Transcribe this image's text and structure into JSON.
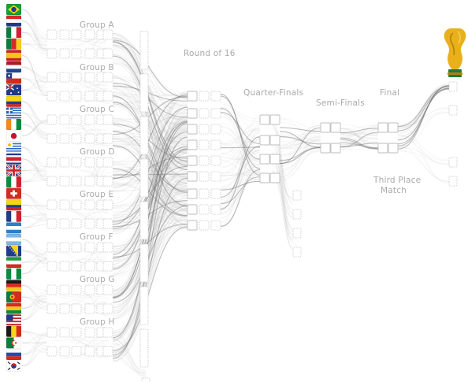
{
  "labels": {
    "group_a": "Group A",
    "group_b": "Group B",
    "group_c": "Group C",
    "group_d": "Group D",
    "group_e": "Group E",
    "group_f": "Group F",
    "group_g": "Group G",
    "group_h": "Group H",
    "round_of_16": "Round of 16",
    "quarter_finals": "Quarter-Finals",
    "semi_finals": "Semi-Finals",
    "final": "Final",
    "third_place_1": "Third Place",
    "third_place_2": "Match"
  },
  "flags": [
    {
      "name": "brazil-flag-icon",
      "colors": [
        "#1a9d3a",
        "#f7d417",
        "#1e3f8f"
      ],
      "pattern": "diamond"
    },
    {
      "name": "croatia-flag-icon",
      "colors": [
        "#d9262b",
        "#ffffff",
        "#1f3c8c"
      ],
      "pattern": "hstripes"
    },
    {
      "name": "mexico-flag-icon",
      "colors": [
        "#0f7b3e",
        "#ffffff",
        "#cf2330"
      ],
      "pattern": "vstripes"
    },
    {
      "name": "cameroon-flag-icon",
      "colors": [
        "#0f7b3e",
        "#d62b2b",
        "#f5d21a"
      ],
      "pattern": "vstripes"
    },
    {
      "name": "spain-flag-icon",
      "colors": [
        "#c8202b",
        "#f6c517",
        "#c8202b"
      ],
      "pattern": "hstripes-wide"
    },
    {
      "name": "netherlands-flag-icon",
      "colors": [
        "#ae1c28",
        "#ffffff",
        "#21468b"
      ],
      "pattern": "hstripes"
    },
    {
      "name": "chile-flag-icon",
      "colors": [
        "#ffffff",
        "#d52b1e",
        "#1f3b8f"
      ],
      "pattern": "chile"
    },
    {
      "name": "australia-flag-icon",
      "colors": [
        "#1f3a8f",
        "#ffffff",
        "#d0202f"
      ],
      "pattern": "blue-ensign"
    },
    {
      "name": "colombia-flag-icon",
      "colors": [
        "#f6d417",
        "#1f3c8c",
        "#cf2330"
      ],
      "pattern": "hstripes-wide"
    },
    {
      "name": "greece-flag-icon",
      "colors": [
        "#1f63b5",
        "#ffffff",
        "#1f63b5"
      ],
      "pattern": "greece"
    },
    {
      "name": "ivory-coast-flag-icon",
      "colors": [
        "#f28a1c",
        "#ffffff",
        "#0f8a3e"
      ],
      "pattern": "vstripes"
    },
    {
      "name": "japan-flag-icon",
      "colors": [
        "#ffffff",
        "#c8102e",
        "#ffffff"
      ],
      "pattern": "disc"
    },
    {
      "name": "uruguay-flag-icon",
      "colors": [
        "#ffffff",
        "#2f66c4",
        "#f4c20d"
      ],
      "pattern": "uruguay"
    },
    {
      "name": "costa-rica-flag-icon",
      "colors": [
        "#1f3c8c",
        "#ffffff",
        "#cf2330"
      ],
      "pattern": "costa"
    },
    {
      "name": "england-flag-icon",
      "colors": [
        "#1f3c8c",
        "#ffffff",
        "#cf2330"
      ],
      "pattern": "union"
    },
    {
      "name": "italy-flag-icon",
      "colors": [
        "#0f8a3e",
        "#ffffff",
        "#cf2330"
      ],
      "pattern": "vstripes"
    },
    {
      "name": "switzerland-flag-icon",
      "colors": [
        "#d52b1e",
        "#ffffff",
        "#d52b1e"
      ],
      "pattern": "cross"
    },
    {
      "name": "ecuador-flag-icon",
      "colors": [
        "#f6d417",
        "#1f3c8c",
        "#cf2330"
      ],
      "pattern": "hstripes-wide"
    },
    {
      "name": "france-flag-icon",
      "colors": [
        "#1f3c8c",
        "#ffffff",
        "#cf2330"
      ],
      "pattern": "vstripes"
    },
    {
      "name": "honduras-flag-icon",
      "colors": [
        "#2f7ec4",
        "#ffffff",
        "#2f7ec4"
      ],
      "pattern": "hstripes"
    },
    {
      "name": "argentina-flag-icon",
      "colors": [
        "#7fb6e6",
        "#ffffff",
        "#7fb6e6"
      ],
      "pattern": "hstripes"
    },
    {
      "name": "bosnia-flag-icon",
      "colors": [
        "#1f3c8c",
        "#f6d417",
        "#1f3c8c"
      ],
      "pattern": "bosnia"
    },
    {
      "name": "iran-flag-icon",
      "colors": [
        "#1f9a3e",
        "#ffffff",
        "#d52b1e"
      ],
      "pattern": "hstripes"
    },
    {
      "name": "nigeria-flag-icon",
      "colors": [
        "#0f8a3e",
        "#ffffff",
        "#0f8a3e"
      ],
      "pattern": "vstripes"
    },
    {
      "name": "germany-flag-icon",
      "colors": [
        "#1a1a1a",
        "#d52b1e",
        "#f6c517"
      ],
      "pattern": "hstripes"
    },
    {
      "name": "portugal-flag-icon",
      "colors": [
        "#0f7b3e",
        "#d52b1e",
        "#d52b1e"
      ],
      "pattern": "portugal"
    },
    {
      "name": "ghana-flag-icon",
      "colors": [
        "#d52b1e",
        "#f6c517",
        "#0f8a3e"
      ],
      "pattern": "hstripes"
    },
    {
      "name": "usa-flag-icon",
      "colors": [
        "#c8202b",
        "#ffffff",
        "#1f3c8c"
      ],
      "pattern": "usa"
    },
    {
      "name": "belgium-flag-icon",
      "colors": [
        "#1a1a1a",
        "#f6d417",
        "#d52b1e"
      ],
      "pattern": "vstripes"
    },
    {
      "name": "algeria-flag-icon",
      "colors": [
        "#0f7b3e",
        "#ffffff",
        "#d52b1e"
      ],
      "pattern": "algeria"
    },
    {
      "name": "russia-flag-icon",
      "colors": [
        "#ffffff",
        "#1f4fb5",
        "#d52b1e"
      ],
      "pattern": "hstripes"
    },
    {
      "name": "korea-flag-icon",
      "colors": [
        "#ffffff",
        "#c8202b",
        "#1f3c8c"
      ],
      "pattern": "korea"
    }
  ],
  "trophy": {
    "name": "world-cup-trophy-icon",
    "gold": "#e8b11c",
    "gold_dark": "#b57e10",
    "base_green": "#1f7a3a"
  }
}
